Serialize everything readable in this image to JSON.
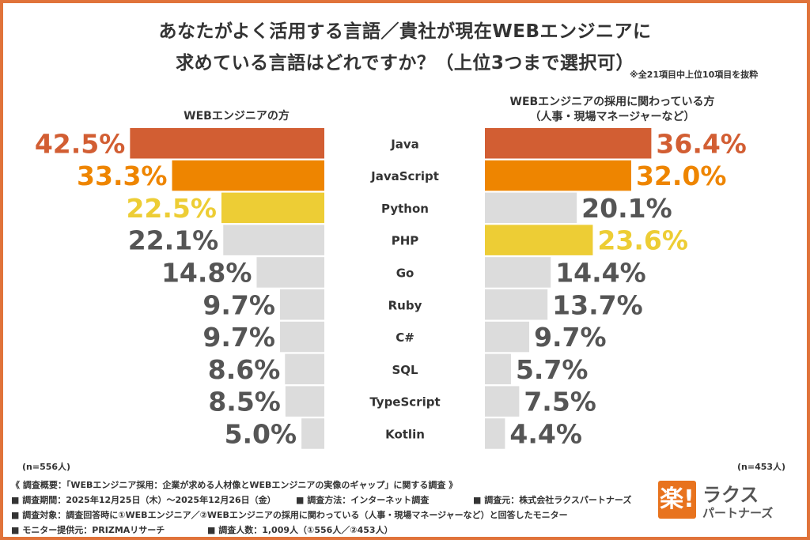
{
  "title": {
    "line1": "あなたがよく活用する言語／貴社が現在WEBエンジニアに",
    "line2": "求めている言語はどれですか？（上位3つまで選択可）",
    "note": "※全21項目中上位10項目を抜粋"
  },
  "headers": {
    "left": "WEBエンジニアの方",
    "right_line1": "WEBエンジニアの採用に関わっている方",
    "right_line2": "（人事・現場マネージャーなど）"
  },
  "sample": {
    "left": "(n=556人)",
    "right": "(n=453人)"
  },
  "colors": {
    "rank1": "#D25E33",
    "rank2": "#EE8500",
    "rank3": "#EDCD35",
    "other": "#DCDCDC",
    "other_text": "#555555",
    "frame": "#E0733A"
  },
  "chart_data": {
    "type": "bar",
    "orientation": "horizontal-butterfly",
    "categories": [
      "Java",
      "JavaScript",
      "Python",
      "PHP",
      "Go",
      "Ruby",
      "C#",
      "SQL",
      "TypeScript",
      "Kotlin"
    ],
    "series": [
      {
        "name": "WEBエンジニアの方",
        "values": [
          42.5,
          33.3,
          22.5,
          22.1,
          14.8,
          9.7,
          9.7,
          8.6,
          8.5,
          5.0
        ],
        "labels": [
          "42.5%",
          "33.3%",
          "22.5%",
          "22.1%",
          "14.8%",
          "9.7%",
          "9.7%",
          "8.6%",
          "8.5%",
          "5.0%"
        ],
        "ranks": [
          1,
          2,
          3,
          0,
          0,
          0,
          0,
          0,
          0,
          0
        ]
      },
      {
        "name": "WEBエンジニアの採用に関わっている方",
        "values": [
          36.4,
          32.0,
          20.1,
          23.6,
          14.4,
          13.7,
          9.7,
          5.7,
          7.5,
          4.4
        ],
        "labels": [
          "36.4%",
          "32.0%",
          "20.1%",
          "23.6%",
          "14.4%",
          "13.7%",
          "9.7%",
          "5.7%",
          "7.5%",
          "4.4%"
        ],
        "ranks": [
          1,
          2,
          0,
          3,
          0,
          0,
          0,
          0,
          0,
          0
        ]
      }
    ],
    "unit": "%"
  },
  "footer": {
    "line1": "《 調査概要：「WEBエンジニア採用：企業が求める人材像とWEBエンジニアの実像のギャップ」に関する調査 》",
    "period": "■ 調査期間：2025年12月25日（木）～2025年12月26日（金）",
    "method": "■ 調査方法：インターネット調査",
    "org": "■ 調査元：株式会社ラクスパートナーズ",
    "target": "■ 調査対象：調査回答時に①WEBエンジニア／②WEBエンジニアの採用に関わっている（人事・現場マネージャーなど）と回答したモニター",
    "provider": "■ モニター提供元：PRIZMAリサーチ",
    "count": "■ 調査人数：1,009人（①556人／②453人）"
  },
  "logo": {
    "mark": "楽!",
    "line1": "ラクス",
    "line2": "パートナーズ"
  }
}
